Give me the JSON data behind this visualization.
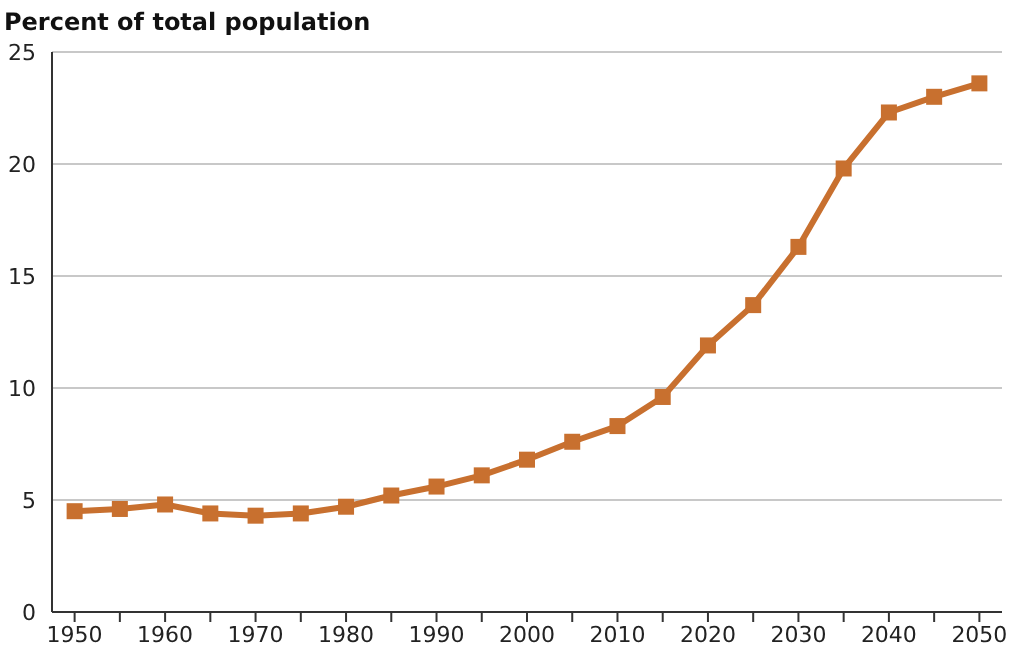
{
  "chart_data": {
    "type": "line",
    "title": "Percent of total population",
    "x": [
      1950,
      1955,
      1960,
      1965,
      1970,
      1975,
      1980,
      1985,
      1990,
      1995,
      2000,
      2005,
      2010,
      2015,
      2020,
      2025,
      2030,
      2035,
      2040,
      2045,
      2050
    ],
    "series": [
      {
        "color": "#c8702f",
        "values": [
          4.5,
          4.6,
          4.8,
          4.4,
          4.3,
          4.4,
          4.7,
          5.2,
          5.6,
          6.1,
          6.8,
          7.6,
          8.3,
          9.6,
          11.9,
          13.7,
          16.3,
          19.8,
          22.3,
          23.0,
          23.6
        ]
      }
    ],
    "xlim": [
      1947.5,
      2052.5
    ],
    "xticks": [
      1950,
      {
        "value": 1955,
        "label": null
      },
      1960,
      {
        "value": 1965,
        "label": null
      },
      1970,
      {
        "value": 1975,
        "label": null
      },
      1980,
      {
        "value": 1985,
        "label": null
      },
      1990,
      {
        "value": 1995,
        "label": null
      },
      2000,
      {
        "value": 2005,
        "label": null
      },
      2010,
      {
        "value": 2015,
        "label": null
      },
      2020,
      {
        "value": 2025,
        "label": null
      },
      2030,
      {
        "value": 2035,
        "label": null
      },
      2040,
      {
        "value": 2045,
        "label": null
      },
      2050
    ],
    "ylim": [
      0,
      25
    ],
    "yticks": [
      0,
      5,
      10,
      15,
      20,
      25
    ],
    "grid": "y",
    "marker": "square",
    "line_style": "solid",
    "legend": false
  }
}
